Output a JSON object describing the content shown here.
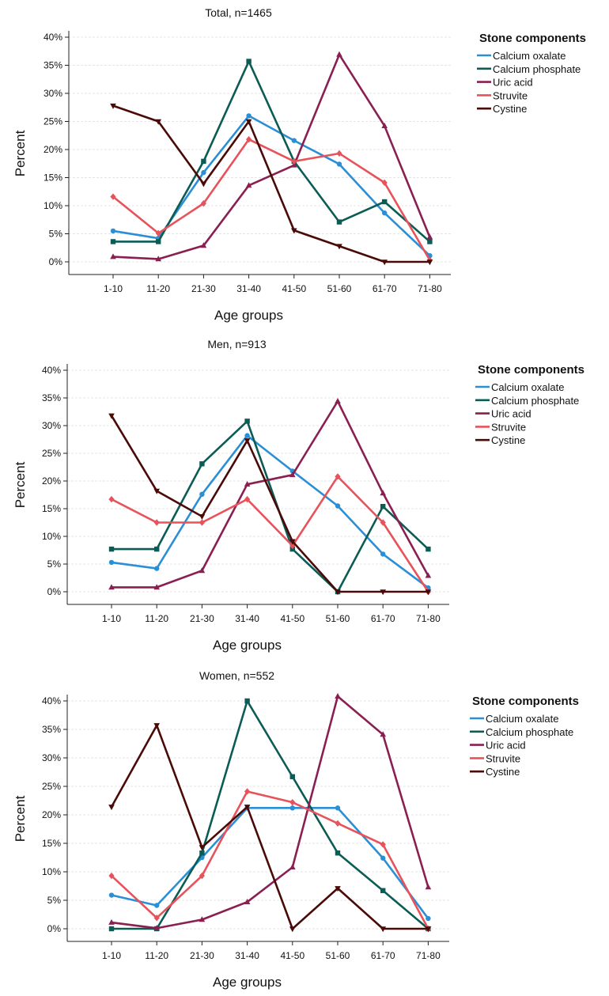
{
  "colors": {
    "calcium_oxalate": "#2b8fd6",
    "calcium_phosphate": "#0b5c55",
    "uric_acid": "#8a1f52",
    "struvite": "#e8525b",
    "cystine": "#4a0a08",
    "grid": "#dcdcdc",
    "axis": "#222222"
  },
  "chart_data": [
    {
      "type": "line",
      "title": "Total, n=1465",
      "xlabel": "Age groups",
      "ylabel": "Percent",
      "ylim": [
        0,
        40
      ],
      "yticks": [
        0,
        5,
        10,
        15,
        20,
        25,
        30,
        35,
        40
      ],
      "ytick_labels": [
        "0%",
        "5%",
        "10%",
        "15%",
        "20%",
        "25%",
        "30%",
        "35%",
        "40%"
      ],
      "grid": true,
      "legend_title": "Stone components",
      "legend_position": "top-right",
      "categories": [
        "1-10",
        "11-20",
        "21-30",
        "31-40",
        "41-50",
        "51-60",
        "61-70",
        "71-80"
      ],
      "series": [
        {
          "name": "Calcium oxalate",
          "color": "calcium_oxalate",
          "marker": "circle",
          "values": [
            5.5,
            4.2,
            15.9,
            26.0,
            21.6,
            17.4,
            8.7,
            1.1
          ]
        },
        {
          "name": "Calcium phosphate",
          "color": "calcium_phosphate",
          "marker": "square",
          "values": [
            3.6,
            3.6,
            17.9,
            35.7,
            17.9,
            7.1,
            10.7,
            3.6
          ]
        },
        {
          "name": "Uric acid",
          "color": "uric_acid",
          "marker": "triangle-up",
          "values": [
            0.9,
            0.5,
            2.9,
            13.6,
            17.2,
            36.9,
            24.2,
            4.4
          ]
        },
        {
          "name": "Struvite",
          "color": "struvite",
          "marker": "diamond",
          "values": [
            11.6,
            5.1,
            10.4,
            21.8,
            17.9,
            19.3,
            14.1,
            0.3
          ]
        },
        {
          "name": "Cystine",
          "color": "cystine",
          "marker": "triangle-down",
          "values": [
            27.8,
            25.0,
            13.9,
            25.0,
            5.6,
            2.8,
            0.0,
            0.0
          ]
        }
      ]
    },
    {
      "type": "line",
      "title": "Men, n=913",
      "xlabel": "Age groups",
      "ylabel": "Percent",
      "ylim": [
        0,
        40
      ],
      "yticks": [
        0,
        5,
        10,
        15,
        20,
        25,
        30,
        35,
        40
      ],
      "ytick_labels": [
        "0%",
        "5%",
        "10%",
        "15%",
        "20%",
        "25%",
        "30%",
        "35%",
        "40%"
      ],
      "grid": true,
      "legend_title": "Stone components",
      "legend_position": "top-right",
      "categories": [
        "1-10",
        "11-20",
        "21-30",
        "31-40",
        "41-50",
        "51-60",
        "61-70",
        "71-80"
      ],
      "series": [
        {
          "name": "Calcium oxalate",
          "color": "calcium_oxalate",
          "marker": "circle",
          "values": [
            5.3,
            4.2,
            17.6,
            28.2,
            21.8,
            15.5,
            6.8,
            0.7
          ]
        },
        {
          "name": "Calcium phosphate",
          "color": "calcium_phosphate",
          "marker": "square",
          "values": [
            7.7,
            7.7,
            23.1,
            30.8,
            7.7,
            0.0,
            15.4,
            7.7
          ]
        },
        {
          "name": "Uric acid",
          "color": "uric_acid",
          "marker": "triangle-up",
          "values": [
            0.8,
            0.8,
            3.8,
            19.4,
            21.1,
            34.4,
            17.8,
            2.9
          ]
        },
        {
          "name": "Struvite",
          "color": "struvite",
          "marker": "diamond",
          "values": [
            16.7,
            12.5,
            12.5,
            16.7,
            8.3,
            20.8,
            12.5,
            0.0
          ]
        },
        {
          "name": "Cystine",
          "color": "cystine",
          "marker": "triangle-down",
          "values": [
            31.8,
            18.2,
            13.6,
            27.3,
            9.1,
            0.0,
            0.0,
            0.0
          ]
        }
      ]
    },
    {
      "type": "line",
      "title": "Women, n=552",
      "xlabel": "Age groups",
      "ylabel": "Percent",
      "ylim": [
        0,
        40
      ],
      "yticks": [
        0,
        5,
        10,
        15,
        20,
        25,
        30,
        35,
        40
      ],
      "ytick_labels": [
        "0%",
        "5%",
        "10%",
        "15%",
        "20%",
        "25%",
        "30%",
        "35%",
        "40%"
      ],
      "grid": true,
      "legend_title": "Stone components",
      "legend_position": "top-right",
      "categories": [
        "1-10",
        "11-20",
        "21-30",
        "31-40",
        "41-50",
        "51-60",
        "61-70",
        "71-80"
      ],
      "series": [
        {
          "name": "Calcium oxalate",
          "color": "calcium_oxalate",
          "marker": "circle",
          "values": [
            5.9,
            4.1,
            12.5,
            21.2,
            21.2,
            21.2,
            12.4,
            1.8
          ]
        },
        {
          "name": "Calcium phosphate",
          "color": "calcium_phosphate",
          "marker": "square",
          "values": [
            0.0,
            0.0,
            13.3,
            40.0,
            26.7,
            13.3,
            6.7,
            0.0
          ]
        },
        {
          "name": "Uric acid",
          "color": "uric_acid",
          "marker": "triangle-up",
          "values": [
            1.1,
            0.1,
            1.6,
            4.7,
            10.8,
            40.8,
            34.1,
            7.3
          ]
        },
        {
          "name": "Struvite",
          "color": "struvite",
          "marker": "diamond",
          "values": [
            9.3,
            1.9,
            9.3,
            24.1,
            22.2,
            18.5,
            14.8,
            0.0
          ]
        },
        {
          "name": "Cystine",
          "color": "cystine",
          "marker": "triangle-down",
          "values": [
            21.4,
            35.7,
            14.3,
            21.4,
            0.0,
            7.1,
            0.0,
            0.0
          ]
        }
      ]
    }
  ]
}
